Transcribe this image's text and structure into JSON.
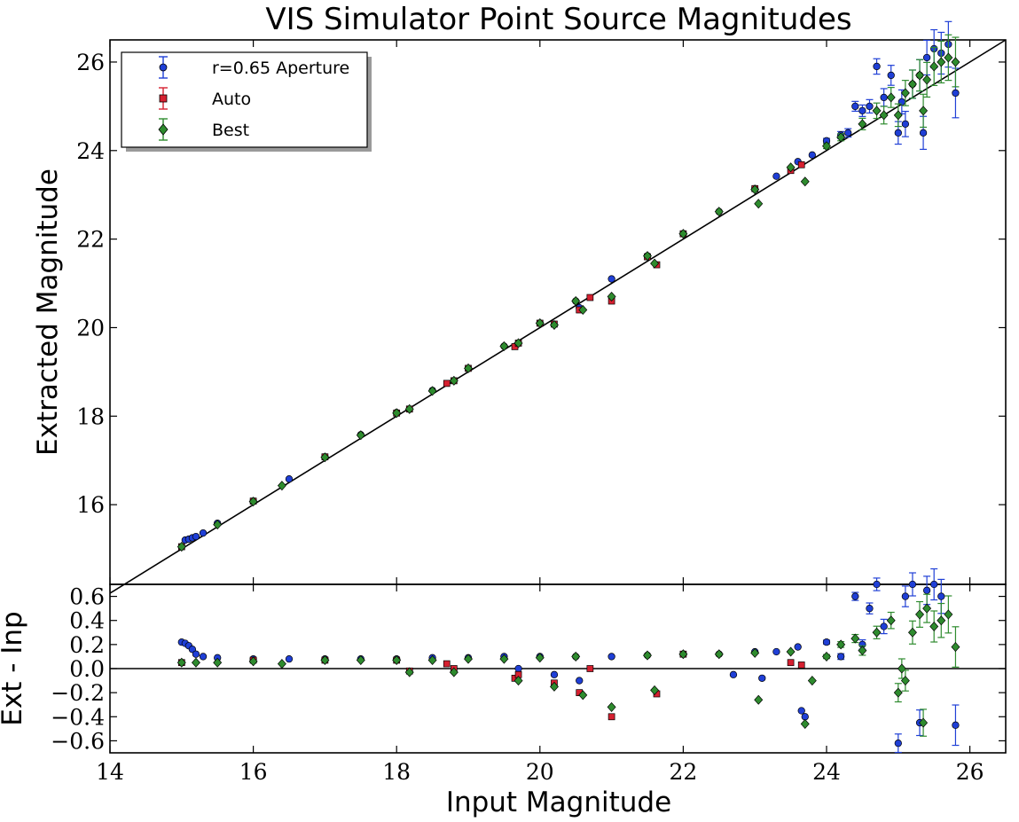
{
  "title": "VIS Simulator Point Source Magnitudes",
  "colors": {
    "aperture": "#1f3fd6",
    "auto": "#d62030",
    "best": "#2e8b2e"
  },
  "chart_data": [
    {
      "type": "scatter",
      "panel": "main",
      "xlabel": "",
      "ylabel": "Extracted Magnitude",
      "xlim": [
        14,
        26.5
      ],
      "ylim": [
        14.2,
        26.5
      ],
      "yticks": [
        16,
        18,
        20,
        22,
        24,
        26
      ],
      "xticks": [
        14,
        16,
        18,
        20,
        22,
        24,
        26
      ],
      "show_x_tick_labels": false,
      "grid": false,
      "legend_position": "top-left",
      "legend": [
        "r=0.65 Aperture",
        "Auto",
        "Best"
      ],
      "reference_line": "y = x",
      "series": [
        {
          "name": "r=0.65 Aperture",
          "marker": "circle",
          "points": [
            [
              15.05,
              15.2
            ],
            [
              15.1,
              15.22
            ],
            [
              15.15,
              15.25
            ],
            [
              15.2,
              15.28
            ],
            [
              15.3,
              15.36
            ],
            [
              15.5,
              15.58
            ],
            [
              16.0,
              16.08
            ],
            [
              16.5,
              16.58
            ],
            [
              17.0,
              17.08
            ],
            [
              17.5,
              17.58
            ],
            [
              18.0,
              18.08
            ],
            [
              18.5,
              18.58
            ],
            [
              19.0,
              19.08
            ],
            [
              19.5,
              19.58
            ],
            [
              20.0,
              20.1
            ],
            [
              20.5,
              20.6
            ],
            [
              20.55,
              20.45
            ],
            [
              21.0,
              21.1
            ],
            [
              21.5,
              21.62
            ],
            [
              22.0,
              22.12
            ],
            [
              22.5,
              22.62
            ],
            [
              23.0,
              23.14
            ],
            [
              23.3,
              23.42
            ],
            [
              23.6,
              23.75
            ],
            [
              23.8,
              23.9
            ],
            [
              24.0,
              24.22
            ],
            [
              24.2,
              24.35
            ],
            [
              24.3,
              24.4
            ],
            [
              24.4,
              25.0
            ],
            [
              24.5,
              24.9
            ],
            [
              24.6,
              25.0
            ],
            [
              24.7,
              25.9
            ],
            [
              24.8,
              25.2
            ],
            [
              24.9,
              25.7
            ],
            [
              25.0,
              24.4
            ],
            [
              25.05,
              25.1
            ],
            [
              25.1,
              24.6
            ],
            [
              25.2,
              25.5
            ],
            [
              25.3,
              25.7
            ],
            [
              25.35,
              24.4
            ],
            [
              25.4,
              26.1
            ],
            [
              25.5,
              26.3
            ],
            [
              25.6,
              26.2
            ],
            [
              25.7,
              26.4
            ],
            [
              25.8,
              25.3
            ]
          ]
        },
        {
          "name": "Auto",
          "marker": "square",
          "points": [
            [
              15.0,
              15.05
            ],
            [
              16.0,
              16.08
            ],
            [
              17.0,
              17.08
            ],
            [
              18.0,
              18.07
            ],
            [
              18.18,
              18.16
            ],
            [
              18.7,
              18.74
            ],
            [
              18.8,
              18.8
            ],
            [
              19.0,
              19.08
            ],
            [
              19.65,
              19.57
            ],
            [
              19.7,
              19.65
            ],
            [
              20.0,
              20.1
            ],
            [
              20.2,
              20.08
            ],
            [
              20.55,
              20.4
            ],
            [
              20.7,
              20.68
            ],
            [
              21.0,
              20.6
            ],
            [
              21.5,
              21.6
            ],
            [
              21.63,
              21.42
            ],
            [
              22.0,
              22.12
            ],
            [
              23.0,
              23.14
            ],
            [
              23.5,
              23.55
            ],
            [
              23.65,
              23.68
            ]
          ]
        },
        {
          "name": "Best",
          "marker": "diamond",
          "points": [
            [
              15.0,
              15.05
            ],
            [
              15.5,
              15.55
            ],
            [
              16.0,
              16.07
            ],
            [
              16.4,
              16.43
            ],
            [
              17.0,
              17.07
            ],
            [
              17.5,
              17.57
            ],
            [
              18.0,
              18.07
            ],
            [
              18.18,
              18.16
            ],
            [
              18.5,
              18.57
            ],
            [
              18.8,
              18.8
            ],
            [
              19.0,
              19.08
            ],
            [
              19.5,
              19.58
            ],
            [
              19.7,
              19.65
            ],
            [
              20.0,
              20.1
            ],
            [
              20.2,
              20.06
            ],
            [
              20.5,
              20.6
            ],
            [
              20.6,
              20.4
            ],
            [
              21.0,
              20.7
            ],
            [
              21.5,
              21.62
            ],
            [
              21.6,
              21.45
            ],
            [
              22.0,
              22.12
            ],
            [
              22.5,
              22.62
            ],
            [
              23.0,
              23.12
            ],
            [
              23.05,
              22.8
            ],
            [
              23.5,
              23.62
            ],
            [
              23.7,
              23.3
            ],
            [
              24.0,
              24.1
            ],
            [
              24.2,
              24.3
            ],
            [
              24.5,
              24.6
            ],
            [
              24.7,
              24.9
            ],
            [
              24.8,
              24.8
            ],
            [
              24.9,
              25.2
            ],
            [
              25.0,
              24.8
            ],
            [
              25.1,
              25.3
            ],
            [
              25.2,
              25.5
            ],
            [
              25.3,
              25.7
            ],
            [
              25.35,
              24.9
            ],
            [
              25.4,
              25.6
            ],
            [
              25.5,
              25.9
            ],
            [
              25.6,
              26.0
            ],
            [
              25.7,
              26.1
            ],
            [
              25.8,
              26.0
            ]
          ]
        }
      ]
    },
    {
      "type": "scatter",
      "panel": "residual",
      "xlabel": "Input Magnitude",
      "ylabel": "Ext - Inp",
      "xlim": [
        14,
        26.5
      ],
      "ylim": [
        -0.7,
        0.7
      ],
      "yticks": [
        -0.6,
        -0.4,
        -0.2,
        0.0,
        0.2,
        0.4,
        0.6
      ],
      "ytick_labels": [
        "−0.6",
        "−0.4",
        "−0.2",
        "0.0",
        "0.2",
        "0.4",
        "0.6"
      ],
      "xticks": [
        14,
        16,
        18,
        20,
        22,
        24,
        26
      ],
      "xtick_labels": [
        "14",
        "16",
        "18",
        "20",
        "22",
        "24",
        "26"
      ],
      "grid": false,
      "reference_line": "y = 0",
      "series": [
        {
          "name": "r=0.65 Aperture",
          "marker": "circle",
          "points": [
            [
              15.0,
              0.22
            ],
            [
              15.05,
              0.21
            ],
            [
              15.1,
              0.19
            ],
            [
              15.15,
              0.16
            ],
            [
              15.2,
              0.12
            ],
            [
              15.3,
              0.1
            ],
            [
              15.5,
              0.09
            ],
            [
              16.0,
              0.08
            ],
            [
              16.5,
              0.08
            ],
            [
              17.0,
              0.08
            ],
            [
              17.5,
              0.08
            ],
            [
              18.0,
              0.08
            ],
            [
              18.5,
              0.09
            ],
            [
              19.0,
              0.09
            ],
            [
              19.5,
              0.1
            ],
            [
              19.7,
              0.0
            ],
            [
              20.0,
              0.1
            ],
            [
              20.2,
              -0.05
            ],
            [
              20.5,
              0.1
            ],
            [
              20.55,
              -0.1
            ],
            [
              21.0,
              0.1
            ],
            [
              21.5,
              0.11
            ],
            [
              22.0,
              0.12
            ],
            [
              22.5,
              0.12
            ],
            [
              22.7,
              -0.05
            ],
            [
              23.0,
              0.14
            ],
            [
              23.1,
              -0.08
            ],
            [
              23.3,
              0.14
            ],
            [
              23.6,
              0.18
            ],
            [
              23.65,
              -0.35
            ],
            [
              23.7,
              -0.4
            ],
            [
              24.0,
              0.22
            ],
            [
              24.2,
              0.1
            ],
            [
              24.4,
              0.6
            ],
            [
              24.5,
              0.2
            ],
            [
              24.6,
              0.5
            ],
            [
              24.7,
              0.7
            ],
            [
              24.8,
              0.35
            ],
            [
              25.0,
              -0.62
            ],
            [
              25.1,
              0.6
            ],
            [
              25.2,
              0.7
            ],
            [
              25.3,
              -0.45
            ],
            [
              25.4,
              0.65
            ],
            [
              25.5,
              0.7
            ],
            [
              25.6,
              0.6
            ],
            [
              25.8,
              -0.47
            ]
          ]
        },
        {
          "name": "Auto",
          "marker": "square",
          "points": [
            [
              15.0,
              0.05
            ],
            [
              16.0,
              0.07
            ],
            [
              17.0,
              0.07
            ],
            [
              18.0,
              0.07
            ],
            [
              18.18,
              -0.02
            ],
            [
              18.7,
              0.04
            ],
            [
              18.8,
              0.0
            ],
            [
              19.65,
              -0.08
            ],
            [
              19.7,
              -0.05
            ],
            [
              20.2,
              -0.12
            ],
            [
              20.55,
              -0.2
            ],
            [
              20.7,
              0.0
            ],
            [
              21.0,
              -0.4
            ],
            [
              21.63,
              -0.21
            ],
            [
              22.0,
              0.12
            ],
            [
              23.5,
              0.05
            ],
            [
              23.65,
              0.03
            ]
          ]
        },
        {
          "name": "Best",
          "marker": "diamond",
          "points": [
            [
              15.0,
              0.05
            ],
            [
              15.2,
              0.05
            ],
            [
              15.5,
              0.05
            ],
            [
              16.0,
              0.06
            ],
            [
              16.4,
              0.04
            ],
            [
              17.0,
              0.07
            ],
            [
              17.5,
              0.07
            ],
            [
              18.0,
              0.07
            ],
            [
              18.18,
              -0.03
            ],
            [
              18.5,
              0.07
            ],
            [
              18.8,
              -0.03
            ],
            [
              19.0,
              0.08
            ],
            [
              19.5,
              0.08
            ],
            [
              19.7,
              -0.1
            ],
            [
              20.0,
              0.09
            ],
            [
              20.2,
              -0.15
            ],
            [
              20.5,
              0.1
            ],
            [
              20.6,
              -0.22
            ],
            [
              21.0,
              -0.32
            ],
            [
              21.5,
              0.11
            ],
            [
              21.6,
              -0.18
            ],
            [
              22.0,
              0.12
            ],
            [
              22.5,
              0.12
            ],
            [
              23.0,
              0.13
            ],
            [
              23.05,
              -0.26
            ],
            [
              23.5,
              0.14
            ],
            [
              23.7,
              -0.46
            ],
            [
              23.8,
              -0.1
            ],
            [
              24.0,
              0.1
            ],
            [
              24.2,
              0.2
            ],
            [
              24.4,
              0.25
            ],
            [
              24.5,
              0.15
            ],
            [
              24.7,
              0.3
            ],
            [
              24.9,
              0.4
            ],
            [
              25.0,
              -0.2
            ],
            [
              25.05,
              0.0
            ],
            [
              25.1,
              -0.1
            ],
            [
              25.2,
              0.3
            ],
            [
              25.3,
              0.45
            ],
            [
              25.35,
              -0.45
            ],
            [
              25.4,
              0.5
            ],
            [
              25.5,
              0.35
            ],
            [
              25.6,
              0.4
            ],
            [
              25.7,
              0.45
            ],
            [
              25.8,
              0.18
            ]
          ]
        }
      ]
    }
  ]
}
